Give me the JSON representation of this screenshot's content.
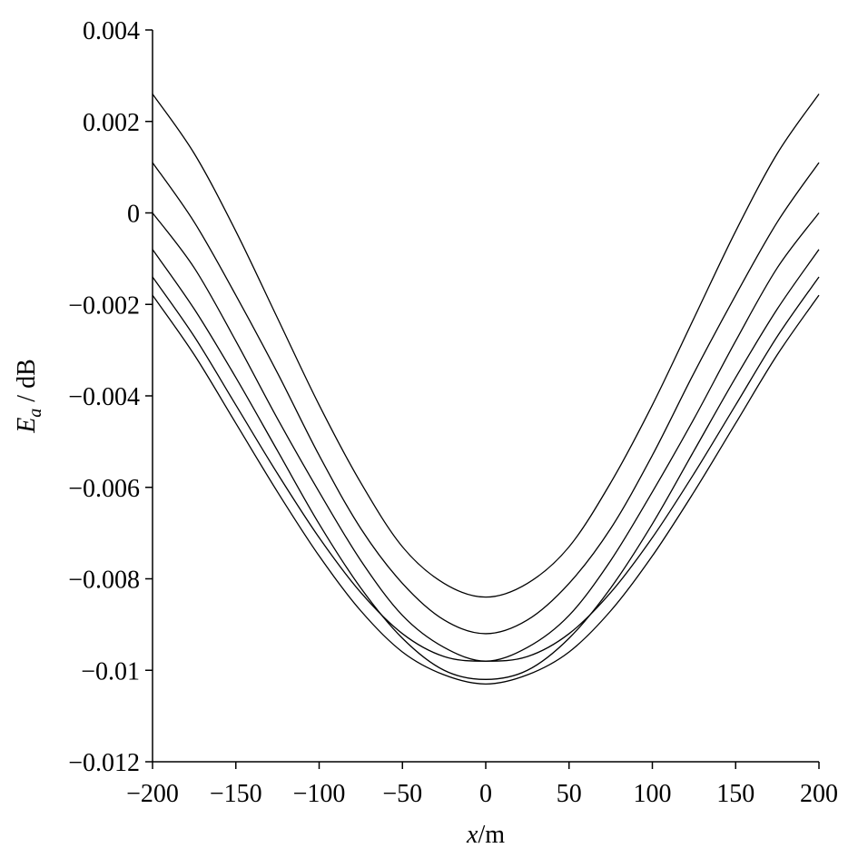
{
  "chart_data": {
    "type": "line",
    "title": "",
    "xlabel": {
      "variable": "x",
      "unit": "/m"
    },
    "ylabel": {
      "variable": "E",
      "subscript": "a",
      "unit": " / dB"
    },
    "xlim": [
      -200,
      200
    ],
    "ylim": [
      -0.012,
      0.004
    ],
    "xticks": [
      -200,
      -150,
      -100,
      -50,
      0,
      50,
      100,
      150,
      200
    ],
    "xtick_labels": [
      "−200",
      "−150",
      "−100",
      "−50",
      "0",
      "50",
      "100",
      "150",
      "200"
    ],
    "yticks": [
      0.004,
      0.002,
      0,
      -0.002,
      -0.004,
      -0.006,
      -0.008,
      -0.01,
      -0.012
    ],
    "ytick_labels": [
      "0.004",
      "0.002",
      "0",
      "−0.002",
      "−0.004",
      "−0.006",
      "−0.008",
      "−0.01",
      "−0.012"
    ],
    "grid": false,
    "line_color": "#000000",
    "series": [
      {
        "x": [
          -200,
          -175,
          -150,
          -125,
          -100,
          -75,
          -50,
          -25,
          0,
          25,
          50,
          75,
          100,
          125,
          150,
          175,
          200
        ],
        "values": [
          0.0026,
          0.0013,
          -0.0004,
          -0.0023,
          -0.0042,
          -0.0059,
          -0.0073,
          -0.0081,
          -0.0084,
          -0.0081,
          -0.0073,
          -0.0059,
          -0.0042,
          -0.0023,
          -0.0004,
          0.0013,
          0.0026
        ]
      },
      {
        "x": [
          -200,
          -175,
          -150,
          -125,
          -100,
          -75,
          -50,
          -25,
          0,
          25,
          50,
          75,
          100,
          125,
          150,
          175,
          200
        ],
        "values": [
          0.0011,
          -0.0002,
          -0.0018,
          -0.0035,
          -0.0053,
          -0.0069,
          -0.0081,
          -0.0089,
          -0.0092,
          -0.0089,
          -0.0081,
          -0.0069,
          -0.0053,
          -0.0035,
          -0.0018,
          -0.0002,
          0.0011
        ]
      },
      {
        "x": [
          -200,
          -175,
          -150,
          -125,
          -100,
          -75,
          -50,
          -25,
          0,
          25,
          50,
          75,
          100,
          125,
          150,
          175,
          200
        ],
        "values": [
          0.0,
          -0.0012,
          -0.0028,
          -0.0045,
          -0.0061,
          -0.0076,
          -0.0088,
          -0.0095,
          -0.0098,
          -0.0095,
          -0.0088,
          -0.0076,
          -0.0061,
          -0.0045,
          -0.0028,
          -0.0012,
          0.0
        ]
      },
      {
        "x": [
          -200,
          -175,
          -150,
          -125,
          -100,
          -75,
          -50,
          -25,
          0,
          25,
          50,
          75,
          100,
          125,
          150,
          175,
          200
        ],
        "values": [
          -0.0008,
          -0.0021,
          -0.0036,
          -0.0052,
          -0.0068,
          -0.0082,
          -0.0093,
          -0.01,
          -0.0102,
          -0.01,
          -0.0093,
          -0.0082,
          -0.0068,
          -0.0052,
          -0.0036,
          -0.0021,
          -0.0008
        ]
      },
      {
        "x": [
          -200,
          -175,
          -150,
          -125,
          -100,
          -75,
          -50,
          -25,
          0,
          25,
          50,
          75,
          100,
          125,
          150,
          175,
          200
        ],
        "values": [
          -0.0014,
          -0.0027,
          -0.0042,
          -0.0057,
          -0.0071,
          -0.0083,
          -0.0092,
          -0.0097,
          -0.0098,
          -0.0097,
          -0.0092,
          -0.0083,
          -0.0071,
          -0.0057,
          -0.0042,
          -0.0027,
          -0.0014
        ]
      },
      {
        "x": [
          -200,
          -175,
          -150,
          -125,
          -100,
          -75,
          -50,
          -25,
          0,
          25,
          50,
          75,
          100,
          125,
          150,
          175,
          200
        ],
        "values": [
          -0.0018,
          -0.0031,
          -0.0046,
          -0.0061,
          -0.0075,
          -0.0087,
          -0.0096,
          -0.0101,
          -0.0103,
          -0.0101,
          -0.0096,
          -0.0087,
          -0.0075,
          -0.0061,
          -0.0046,
          -0.0031,
          -0.0018
        ]
      }
    ]
  }
}
